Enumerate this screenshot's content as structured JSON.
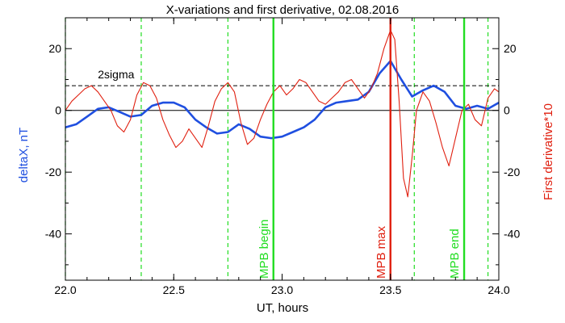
{
  "chart_data": {
    "type": "line",
    "title": "X-variations and first derivative, 02.08.2016",
    "xlabel": "UT, hours",
    "ylabel_left": "deltaX, nT",
    "ylabel_right": "First derivative*10",
    "xlim": [
      22.0,
      24.0
    ],
    "ylim": [
      -55,
      30
    ],
    "x_ticks": [
      22.0,
      22.5,
      23.0,
      23.5,
      24.0
    ],
    "x_tick_labels": [
      "22.0",
      "22.5",
      "23.0",
      "23.5",
      "24.0"
    ],
    "y_ticks": [
      20,
      0,
      -20,
      -40
    ],
    "y_tick_labels": [
      "20",
      "0",
      "-20",
      "-40"
    ],
    "zero_line": 0,
    "sigma_line": {
      "label": "2sigma",
      "value": 8,
      "color": "#000000"
    },
    "colors": {
      "deltax": "#1f4fe0",
      "derivative": "#e02010",
      "mpb": "#22dd22",
      "mpb_max": "#e02010",
      "dashed_green": "#22dd22"
    },
    "dashed_vlines": [
      22.0,
      22.35,
      22.75,
      23.61,
      23.95
    ],
    "markers": [
      {
        "x": 22.96,
        "label": "MPB begin",
        "color": "#22dd22"
      },
      {
        "x": 23.5,
        "label": "MPB max",
        "color": "#e02010"
      },
      {
        "x": 23.84,
        "label": "MPB end",
        "color": "#22dd22"
      }
    ],
    "series": [
      {
        "key": "deltax",
        "color": "#1f4fe0",
        "x": [
          22.0,
          22.05,
          22.1,
          22.15,
          22.2,
          22.25,
          22.3,
          22.35,
          22.4,
          22.45,
          22.5,
          22.55,
          22.6,
          22.65,
          22.7,
          22.75,
          22.8,
          22.85,
          22.9,
          22.95,
          23.0,
          23.05,
          23.1,
          23.15,
          23.2,
          23.25,
          23.3,
          23.35,
          23.4,
          23.45,
          23.5,
          23.55,
          23.6,
          23.65,
          23.7,
          23.75,
          23.8,
          23.85,
          23.9,
          23.95,
          24.0
        ],
        "y": [
          -5.5,
          -4.5,
          -2,
          0.5,
          1,
          -0.5,
          -2,
          -1.5,
          1.5,
          2.5,
          2.5,
          1,
          -3,
          -5.5,
          -7.5,
          -7,
          -4.5,
          -6,
          -8.5,
          -9,
          -8.5,
          -7,
          -5.5,
          -3,
          1,
          2.5,
          3,
          3.5,
          6,
          12,
          16,
          10,
          4.5,
          6.5,
          8,
          6,
          1.5,
          0.5,
          1.5,
          0.5,
          2.5
        ]
      },
      {
        "key": "derivative",
        "color": "#e02010",
        "x": [
          22.0,
          22.03,
          22.06,
          22.09,
          22.12,
          22.15,
          22.18,
          22.21,
          22.24,
          22.27,
          22.3,
          22.33,
          22.36,
          22.39,
          22.42,
          22.45,
          22.48,
          22.51,
          22.54,
          22.57,
          22.6,
          22.63,
          22.66,
          22.69,
          22.72,
          22.75,
          22.78,
          22.81,
          22.84,
          22.87,
          22.9,
          22.93,
          22.96,
          22.99,
          23.02,
          23.05,
          23.08,
          23.11,
          23.14,
          23.17,
          23.2,
          23.23,
          23.26,
          23.29,
          23.32,
          23.35,
          23.38,
          23.41,
          23.44,
          23.47,
          23.5,
          23.52,
          23.54,
          23.56,
          23.58,
          23.6,
          23.62,
          23.65,
          23.68,
          23.71,
          23.74,
          23.77,
          23.8,
          23.83,
          23.86,
          23.89,
          23.92,
          23.95,
          23.98,
          24.0
        ],
        "y": [
          0,
          3,
          5,
          7,
          8,
          6,
          3,
          0,
          -5,
          -7,
          -3,
          5,
          9,
          8,
          4,
          -3,
          -8,
          -12,
          -10,
          -6,
          -9,
          -12,
          -5,
          3,
          7,
          9,
          6,
          -4,
          -11,
          -9,
          -3,
          2,
          6,
          8,
          5,
          7,
          10,
          9,
          6,
          3,
          2,
          4,
          6,
          9,
          10,
          7,
          4,
          7,
          12,
          20,
          26,
          23,
          3,
          -22,
          -28,
          -15,
          0,
          6,
          3,
          -4,
          -12,
          -18,
          -9,
          0,
          2,
          -3,
          -5,
          4,
          7,
          6
        ]
      }
    ]
  }
}
